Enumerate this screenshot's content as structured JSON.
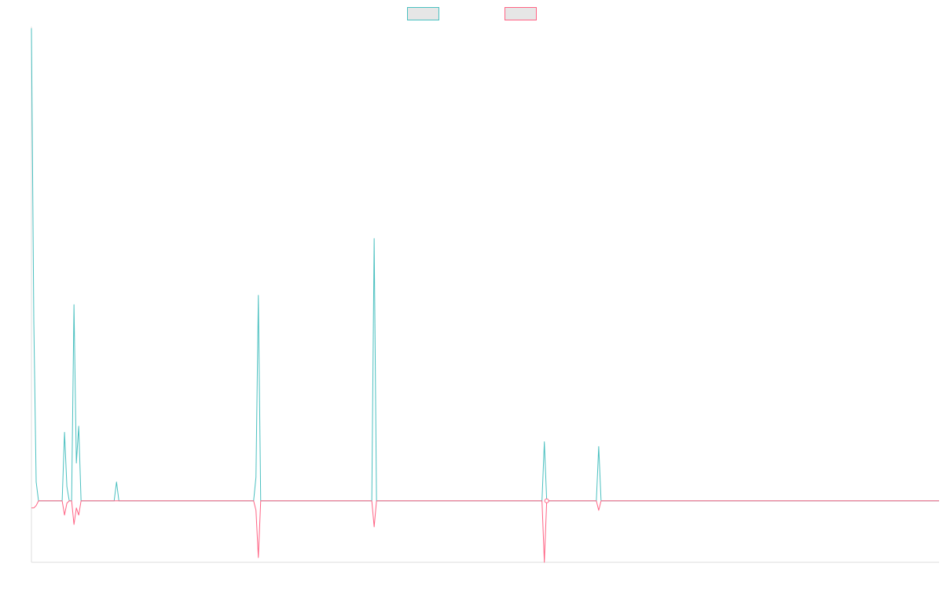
{
  "chart_data": {
    "type": "line",
    "title": "",
    "xlabel": "",
    "ylabel": "",
    "grid": false,
    "legend_position": "top-center",
    "xlim": [
      0,
      192
    ],
    "ylim": [
      -13,
      100
    ],
    "series": [
      {
        "color": "#4bc0c0",
        "legend_fill": "#e6e6e6",
        "marker_indices": [],
        "points": [
          [
            0,
            100
          ],
          [
            0.5,
            38
          ],
          [
            1,
            4
          ],
          [
            1.5,
            0
          ],
          [
            2,
            0
          ],
          [
            6.5,
            0
          ],
          [
            7,
            14.5
          ],
          [
            7.5,
            3
          ],
          [
            8,
            0
          ],
          [
            8.5,
            0
          ],
          [
            9,
            41.5
          ],
          [
            9.5,
            8
          ],
          [
            10,
            15.8
          ],
          [
            10.5,
            0
          ],
          [
            11,
            0
          ],
          [
            17.5,
            0
          ],
          [
            18,
            4
          ],
          [
            18.5,
            0
          ],
          [
            47,
            0
          ],
          [
            47.5,
            5
          ],
          [
            48,
            43.5
          ],
          [
            48.5,
            0
          ],
          [
            72,
            0
          ],
          [
            72.5,
            55.5
          ],
          [
            73,
            0
          ],
          [
            108,
            0
          ],
          [
            108.5,
            12.5
          ],
          [
            109,
            0
          ],
          [
            119.5,
            0
          ],
          [
            120,
            11.5
          ],
          [
            120.5,
            0
          ],
          [
            192,
            0
          ]
        ]
      },
      {
        "color": "#ff6384",
        "legend_fill": "#e6e6e6",
        "marker_indices": [
          24
        ],
        "points": [
          [
            0,
            -1.5
          ],
          [
            0.5,
            -1.5
          ],
          [
            1,
            -1
          ],
          [
            1.5,
            0
          ],
          [
            2,
            0
          ],
          [
            6.5,
            0
          ],
          [
            7,
            -3
          ],
          [
            7.5,
            -0.5
          ],
          [
            8,
            0
          ],
          [
            8.5,
            0
          ],
          [
            9,
            -5
          ],
          [
            9.5,
            -1.5
          ],
          [
            10,
            -3
          ],
          [
            10.5,
            0
          ],
          [
            11,
            0
          ],
          [
            47,
            0
          ],
          [
            47.5,
            -2
          ],
          [
            48,
            -12
          ],
          [
            48.5,
            0
          ],
          [
            72,
            0
          ],
          [
            72.5,
            -5.5
          ],
          [
            73,
            0
          ],
          [
            108,
            0
          ],
          [
            108.5,
            -13
          ],
          [
            109,
            0
          ],
          [
            119.5,
            0
          ],
          [
            120,
            -2
          ],
          [
            120.5,
            0
          ],
          [
            192,
            0
          ]
        ]
      }
    ]
  }
}
